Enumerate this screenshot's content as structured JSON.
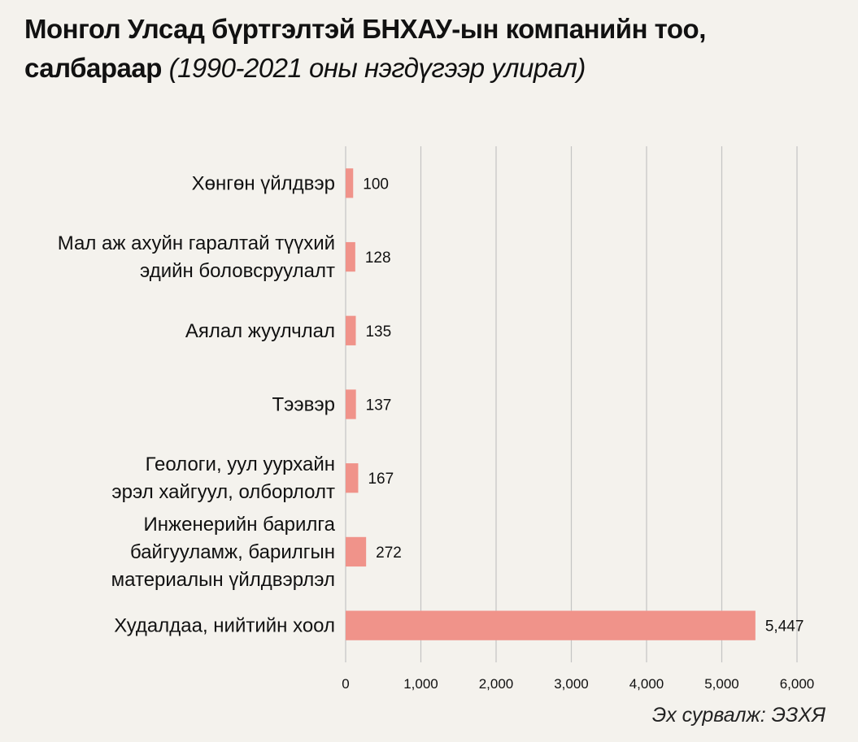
{
  "title": {
    "line1": "Монгол Улсад бүртгэлтэй БНХАУ-ын компанийн тоо,",
    "line2_bold": "салбараар",
    "line2_italic": "(1990-2021 оны нэгдүгээр улирал)"
  },
  "source": "Эх сурвалж: ЭЗХЯ",
  "colors": {
    "bar": "#f0938a",
    "grid": "#c4c4c4",
    "background": "#f4f2ed",
    "text": "#111111"
  },
  "chart_data": {
    "type": "bar",
    "orientation": "horizontal",
    "categories": [
      [
        "Хөнгөн үйлдвэр"
      ],
      [
        "Мал аж ахуйн гаралтай түүхий",
        "эдийн боловсруулалт"
      ],
      [
        "Аялал жуулчлал"
      ],
      [
        "Тээвэр"
      ],
      [
        "Геологи, уул уурхайн",
        "эрэл хайгуул, олборлолт"
      ],
      [
        "Инженерийн барилга",
        "байгууламж, барилгын",
        "материалын үйлдвэрлэл"
      ],
      [
        "Худалдаа, нийтийн хоол"
      ]
    ],
    "values": [
      100,
      128,
      135,
      137,
      167,
      272,
      5447
    ],
    "value_labels": [
      "100",
      "128",
      "135",
      "137",
      "167",
      "272",
      "5,447"
    ],
    "xlim": [
      0,
      6000
    ],
    "xticks": [
      0,
      1000,
      2000,
      3000,
      4000,
      5000,
      6000
    ],
    "xtick_labels": [
      "0",
      "1,000",
      "2,000",
      "3,000",
      "4,000",
      "5,000",
      "6,000"
    ],
    "grid": true,
    "legend": "none"
  }
}
